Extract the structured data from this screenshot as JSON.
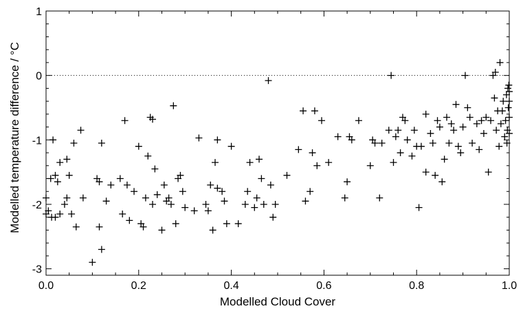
{
  "chart_data": {
    "type": "scatter",
    "title": "",
    "xlabel": "Modelled Cloud Cover",
    "ylabel": "Modelled temperature difference / °C",
    "xlim": [
      0.0,
      1.0
    ],
    "ylim": [
      -3.1,
      1.0
    ],
    "x_ticks": [
      "0.0",
      "0.2",
      "0.4",
      "0.6",
      "0.8",
      "1.0"
    ],
    "y_ticks": [
      "1",
      "0",
      "-1",
      "-2",
      "-3"
    ],
    "reference_line": {
      "y": 0,
      "style": "dotted"
    },
    "marker": "plus",
    "grid": false,
    "legend": "none",
    "series": [
      {
        "points": [
          [
            0.0,
            -1.9
          ],
          [
            0.0,
            -2.15
          ],
          [
            0.005,
            -2.1
          ],
          [
            0.01,
            -1.6
          ],
          [
            0.012,
            -2.2
          ],
          [
            0.015,
            -1.0
          ],
          [
            0.02,
            -1.55
          ],
          [
            0.02,
            -2.2
          ],
          [
            0.025,
            -1.65
          ],
          [
            0.03,
            -1.35
          ],
          [
            0.03,
            -2.15
          ],
          [
            0.04,
            -2.0
          ],
          [
            0.045,
            -1.3
          ],
          [
            0.045,
            -1.9
          ],
          [
            0.05,
            -1.55
          ],
          [
            0.055,
            -2.15
          ],
          [
            0.06,
            -1.05
          ],
          [
            0.065,
            -2.35
          ],
          [
            0.075,
            -0.85
          ],
          [
            0.08,
            -1.9
          ],
          [
            0.1,
            -2.9
          ],
          [
            0.11,
            -1.6
          ],
          [
            0.115,
            -2.35
          ],
          [
            0.115,
            -1.65
          ],
          [
            0.12,
            -1.05
          ],
          [
            0.12,
            -2.7
          ],
          [
            0.13,
            -1.95
          ],
          [
            0.14,
            -1.7
          ],
          [
            0.16,
            -1.6
          ],
          [
            0.165,
            -2.15
          ],
          [
            0.17,
            -0.7
          ],
          [
            0.175,
            -1.7
          ],
          [
            0.18,
            -2.25
          ],
          [
            0.19,
            -1.8
          ],
          [
            0.2,
            -1.1
          ],
          [
            0.205,
            -2.3
          ],
          [
            0.21,
            -2.35
          ],
          [
            0.215,
            -1.9
          ],
          [
            0.22,
            -1.25
          ],
          [
            0.225,
            -0.65
          ],
          [
            0.23,
            -2.0
          ],
          [
            0.23,
            -0.68
          ],
          [
            0.235,
            -1.45
          ],
          [
            0.24,
            -1.85
          ],
          [
            0.25,
            -2.4
          ],
          [
            0.255,
            -1.7
          ],
          [
            0.26,
            -1.95
          ],
          [
            0.265,
            -1.9
          ],
          [
            0.27,
            -2.0
          ],
          [
            0.275,
            -0.47
          ],
          [
            0.28,
            -2.3
          ],
          [
            0.285,
            -1.6
          ],
          [
            0.29,
            -1.55
          ],
          [
            0.295,
            -1.8
          ],
          [
            0.3,
            -2.05
          ],
          [
            0.32,
            -2.1
          ],
          [
            0.33,
            -0.97
          ],
          [
            0.345,
            -2.0
          ],
          [
            0.35,
            -2.1
          ],
          [
            0.355,
            -1.7
          ],
          [
            0.36,
            -2.4
          ],
          [
            0.365,
            -1.35
          ],
          [
            0.37,
            -1.0
          ],
          [
            0.37,
            -1.75
          ],
          [
            0.38,
            -1.8
          ],
          [
            0.385,
            -1.95
          ],
          [
            0.39,
            -2.3
          ],
          [
            0.4,
            -1.1
          ],
          [
            0.415,
            -2.3
          ],
          [
            0.43,
            -2.0
          ],
          [
            0.435,
            -1.8
          ],
          [
            0.44,
            -1.35
          ],
          [
            0.45,
            -2.05
          ],
          [
            0.455,
            -1.9
          ],
          [
            0.46,
            -1.3
          ],
          [
            0.465,
            -1.6
          ],
          [
            0.47,
            -2.0
          ],
          [
            0.48,
            -0.08
          ],
          [
            0.485,
            -1.7
          ],
          [
            0.49,
            -2.2
          ],
          [
            0.495,
            -2.0
          ],
          [
            0.52,
            -1.55
          ],
          [
            0.545,
            -1.15
          ],
          [
            0.555,
            -0.55
          ],
          [
            0.56,
            -1.95
          ],
          [
            0.57,
            -1.8
          ],
          [
            0.575,
            -1.2
          ],
          [
            0.58,
            -0.55
          ],
          [
            0.585,
            -1.4
          ],
          [
            0.595,
            -0.7
          ],
          [
            0.61,
            -1.35
          ],
          [
            0.63,
            -0.95
          ],
          [
            0.645,
            -1.9
          ],
          [
            0.65,
            -1.65
          ],
          [
            0.655,
            -0.95
          ],
          [
            0.66,
            -1.0
          ],
          [
            0.675,
            -0.7
          ],
          [
            0.7,
            -1.4
          ],
          [
            0.705,
            -1.0
          ],
          [
            0.71,
            -1.05
          ],
          [
            0.72,
            -1.9
          ],
          [
            0.725,
            -1.05
          ],
          [
            0.74,
            -0.85
          ],
          [
            0.745,
            -0.0
          ],
          [
            0.75,
            -1.35
          ],
          [
            0.755,
            -0.95
          ],
          [
            0.76,
            -0.85
          ],
          [
            0.765,
            -1.2
          ],
          [
            0.77,
            -0.65
          ],
          [
            0.775,
            -0.7
          ],
          [
            0.78,
            -1.0
          ],
          [
            0.79,
            -1.25
          ],
          [
            0.795,
            -0.85
          ],
          [
            0.8,
            -1.1
          ],
          [
            0.805,
            -2.05
          ],
          [
            0.81,
            -1.1
          ],
          [
            0.82,
            -1.5
          ],
          [
            0.82,
            -0.6
          ],
          [
            0.83,
            -0.9
          ],
          [
            0.835,
            -1.05
          ],
          [
            0.84,
            -1.55
          ],
          [
            0.845,
            -0.7
          ],
          [
            0.85,
            -0.8
          ],
          [
            0.855,
            -1.65
          ],
          [
            0.86,
            -1.3
          ],
          [
            0.865,
            -0.65
          ],
          [
            0.87,
            -1.05
          ],
          [
            0.875,
            -0.75
          ],
          [
            0.88,
            -0.85
          ],
          [
            0.885,
            -0.45
          ],
          [
            0.89,
            -1.1
          ],
          [
            0.895,
            -1.2
          ],
          [
            0.9,
            -0.8
          ],
          [
            0.905,
            -0.0
          ],
          [
            0.91,
            -0.5
          ],
          [
            0.915,
            -0.65
          ],
          [
            0.92,
            -1.05
          ],
          [
            0.93,
            -0.75
          ],
          [
            0.935,
            -1.15
          ],
          [
            0.94,
            -0.7
          ],
          [
            0.945,
            -0.9
          ],
          [
            0.95,
            -0.65
          ],
          [
            0.955,
            -1.5
          ],
          [
            0.96,
            -0.7
          ],
          [
            0.965,
            -0.0
          ],
          [
            0.968,
            -0.35
          ],
          [
            0.97,
            0.05
          ],
          [
            0.972,
            -0.85
          ],
          [
            0.975,
            -0.55
          ],
          [
            0.978,
            -1.1
          ],
          [
            0.98,
            0.2
          ],
          [
            0.982,
            -0.75
          ],
          [
            0.985,
            -0.55
          ],
          [
            0.987,
            -0.4
          ],
          [
            0.99,
            -0.95
          ],
          [
            0.992,
            -0.7
          ],
          [
            0.994,
            -0.3
          ],
          [
            0.995,
            -1.05
          ],
          [
            0.996,
            -0.85
          ],
          [
            0.997,
            -0.2
          ],
          [
            0.998,
            -0.5
          ],
          [
            0.999,
            -0.15
          ],
          [
            1.0,
            -0.65
          ],
          [
            1.0,
            -0.4
          ],
          [
            1.0,
            -0.9
          ],
          [
            1.0,
            -0.25
          ]
        ]
      }
    ]
  }
}
